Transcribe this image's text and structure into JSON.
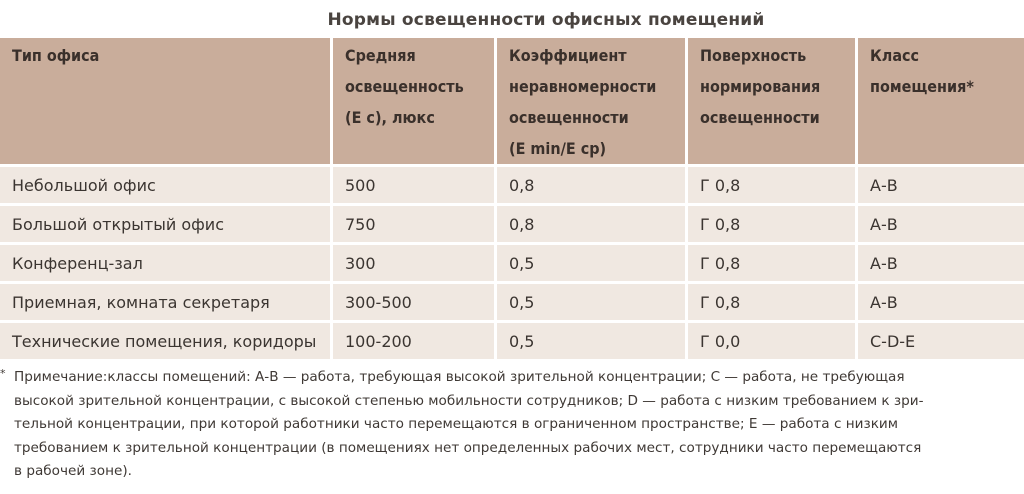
{
  "title": "Нормы освещенности офисных помещений",
  "table": {
    "headers": [
      [
        "Тип офиса"
      ],
      [
        "Средняя",
        "освещенность",
        "(Е с), люкс"
      ],
      [
        "Коэффициент",
        "неравномерности",
        "освещенности",
        "(Е min/Е ср)"
      ],
      [
        "Поверхность",
        "нормирования",
        "освещенности"
      ],
      [
        "Класс",
        "помещения*"
      ]
    ],
    "rows": [
      [
        "Небольшой офис",
        "500",
        "0,8",
        "Г 0,8",
        "А-В"
      ],
      [
        "Большой открытый офис",
        "750",
        "0,8",
        "Г 0,8",
        "А-В"
      ],
      [
        "Конференц-зал",
        "300",
        "0,5",
        "Г 0,8",
        "А-В"
      ],
      [
        "Приемная, комната секретаря",
        "300-500",
        "0,5",
        "Г 0,8",
        "А-В"
      ],
      [
        "Технические помещения, коридоры",
        "100-200",
        "0,5",
        "Г 0,0",
        "С-D-Е"
      ]
    ]
  },
  "note": {
    "marker": "*",
    "lines": [
      "Примечание:классы помещений: А-В — работа, требующая высокой зрительной концентрации; С — работа, не требующая",
      "высокой зрительной концентрации, с высокой степенью мобильности сотрудников; D — работа с низким требованием к зри-",
      "тельной концентрации, при которой работники часто перемещаются в ограниченном пространстве; Е — работа с низким",
      "требованием к зрительной концентрации (в помещениях нет определенных рабочих мест, сотрудники часто перемещаются",
      "в рабочей зоне)."
    ]
  }
}
